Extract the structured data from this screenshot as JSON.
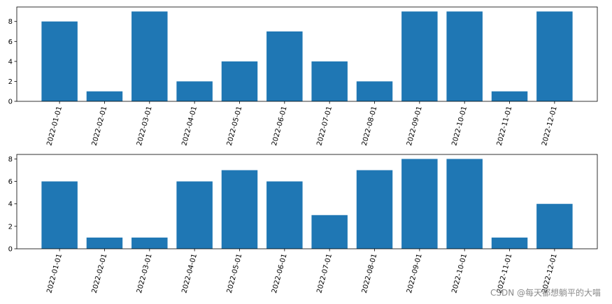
{
  "chart_data": [
    {
      "type": "bar",
      "categories": [
        "2022-01-01",
        "2022-02-01",
        "2022-03-01",
        "2022-04-01",
        "2022-05-01",
        "2022-06-01",
        "2022-07-01",
        "2022-08-01",
        "2022-09-01",
        "2022-10-01",
        "2022-11-01",
        "2022-12-01"
      ],
      "values": [
        8,
        1,
        9,
        2,
        4,
        7,
        4,
        2,
        9,
        9,
        1,
        9
      ],
      "ylim": [
        0,
        9.45
      ],
      "yticks": [
        0,
        2,
        4,
        6,
        8
      ],
      "color": "#1f77b4",
      "xtick_rotation": 75
    },
    {
      "type": "bar",
      "categories": [
        "2022-01-01",
        "2022-02-01",
        "2022-03-01",
        "2022-04-01",
        "2022-05-01",
        "2022-06-01",
        "2022-07-01",
        "2022-08-01",
        "2022-09-01",
        "2022-10-01",
        "2022-11-01",
        "2022-12-01"
      ],
      "values": [
        6,
        1,
        1,
        6,
        7,
        6,
        3,
        7,
        8,
        8,
        1,
        4
      ],
      "ylim": [
        0,
        8.4
      ],
      "yticks": [
        0,
        2,
        4,
        6,
        8
      ],
      "color": "#1f77b4",
      "xtick_rotation": 75
    }
  ],
  "watermark": "CSDN @每天都想躺平的大喵"
}
